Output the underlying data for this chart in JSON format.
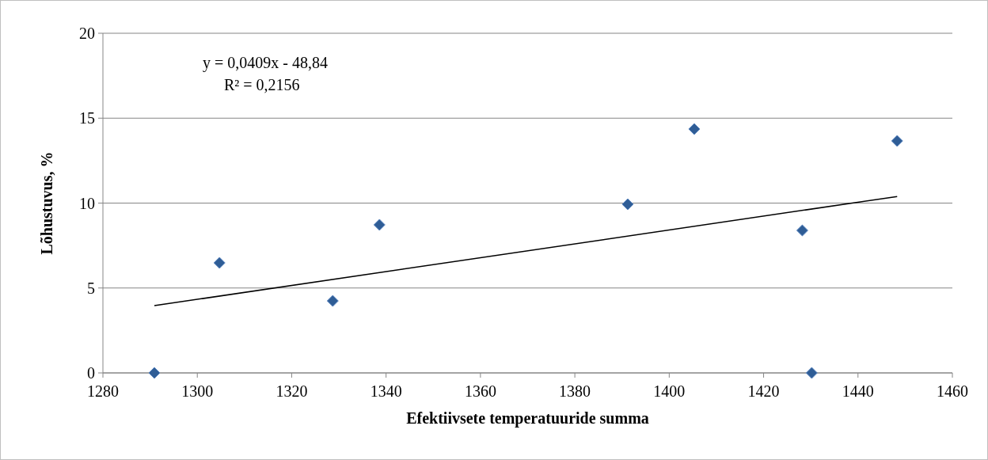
{
  "chart_data": {
    "type": "scatter",
    "xlabel": "Efektiivsete temperatuuride summa",
    "ylabel": "Lõhustuvus, %",
    "xlim": [
      1280,
      1460
    ],
    "xticks": [
      1280,
      1300,
      1320,
      1340,
      1360,
      1380,
      1400,
      1420,
      1440,
      1460
    ],
    "ylim": [
      0,
      20
    ],
    "yticks": [
      0,
      5,
      10,
      15,
      20
    ],
    "grid": "y",
    "annotations": [
      "y = 0,0409x - 48,84",
      "R² = 0,2156"
    ],
    "series": [
      {
        "color": "#2f5d96",
        "marker": "diamond",
        "x": [
          1290.9,
          1304.7,
          1328.7,
          1338.6,
          1391.2,
          1405.3,
          1428.2,
          1430.2,
          1448.3
        ],
        "values": [
          0,
          6.48,
          4.24,
          8.72,
          9.93,
          14.36,
          8.39,
          0,
          13.66
        ]
      },
      {
        "type": "line",
        "color": "#000000",
        "marker": "none",
        "line_style": "solid",
        "x": [
          1290.9,
          1448.3
        ],
        "values": [
          3.96,
          10.39
        ]
      }
    ]
  }
}
